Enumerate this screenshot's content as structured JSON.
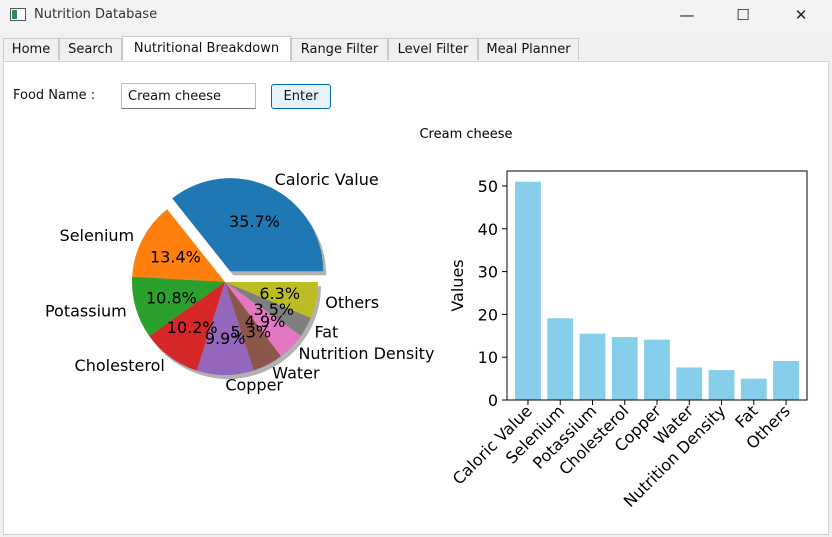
{
  "window": {
    "title": "Nutrition Database"
  },
  "tabs": [
    {
      "label": "Home"
    },
    {
      "label": "Search"
    },
    {
      "label": "Nutritional Breakdown",
      "active": true
    },
    {
      "label": "Range Filter"
    },
    {
      "label": "Level Filter"
    },
    {
      "label": "Meal Planner"
    }
  ],
  "form": {
    "food_label": "Food Name :",
    "food_value": "Cream cheese",
    "enter_label": "Enter"
  },
  "chart_data": [
    {
      "type": "pie",
      "title": "Cream cheese",
      "labels": [
        "Caloric Value",
        "Selenium",
        "Potassium",
        "Cholesterol",
        "Copper",
        "Water",
        "Nutrition Density",
        "Fat",
        "Others"
      ],
      "percent_labels": [
        "35.7%",
        "13.4%",
        "10.8%",
        "10.2%",
        "9.9%",
        "5.3%",
        "4.9%",
        "3.5%",
        "6.3%"
      ],
      "values": [
        35.7,
        13.4,
        10.8,
        10.2,
        9.9,
        5.3,
        4.9,
        3.5,
        6.3
      ],
      "colors": [
        "#1f77b4",
        "#ff7f0e",
        "#2ca02c",
        "#d62728",
        "#9467bd",
        "#8c564b",
        "#e377c2",
        "#7f7f7f",
        "#bcbd22"
      ],
      "explode": "Caloric Value",
      "shadow": true
    },
    {
      "type": "bar",
      "categories": [
        "Caloric Value",
        "Selenium",
        "Potassium",
        "Cholesterol",
        "Copper",
        "Water",
        "Nutrition Density",
        "Fat",
        "Others"
      ],
      "values": [
        51,
        19.1,
        15.5,
        14.7,
        14.1,
        7.6,
        7.0,
        5.0,
        9.1
      ],
      "ylabel": "Values",
      "ylim": [
        0,
        53.5
      ],
      "yticks": [
        0,
        10,
        20,
        30,
        40,
        50
      ],
      "color": "#87ceeb"
    }
  ]
}
